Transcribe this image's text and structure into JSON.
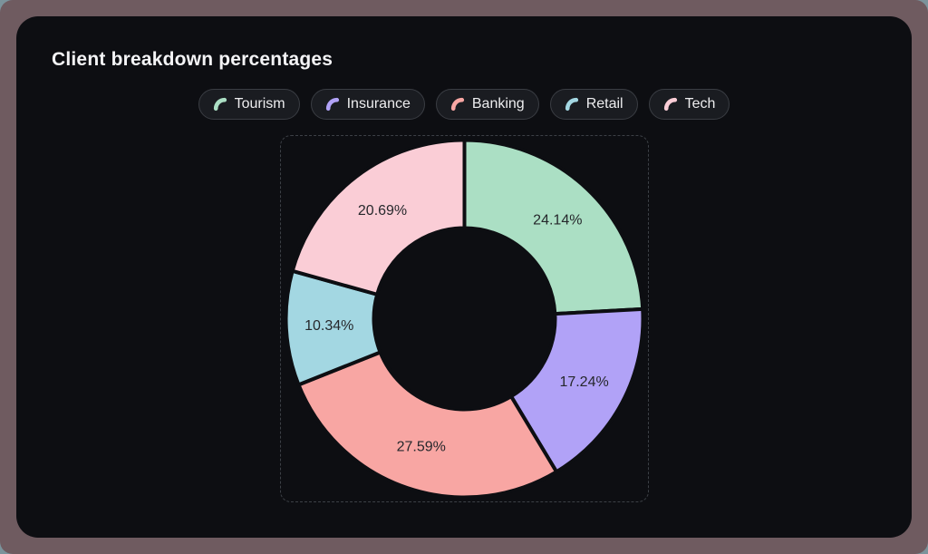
{
  "window": {
    "frame_color": "#6f5b60",
    "card_color": "#0d0e12",
    "corner_backdrop": "#7b939b"
  },
  "title": "Client breakdown percentages",
  "legend": {
    "position": "top",
    "items": [
      {
        "label": "Tourism",
        "color": "#abdfc4"
      },
      {
        "label": "Insurance",
        "color": "#b1a2f7"
      },
      {
        "label": "Banking",
        "color": "#f8a6a3"
      },
      {
        "label": "Retail",
        "color": "#a3d7e2"
      },
      {
        "label": "Tech",
        "color": "#facdd6"
      }
    ]
  },
  "chart_data": {
    "type": "pie",
    "subtype": "donut",
    "title": "Client breakdown percentages",
    "categories": [
      "Tourism",
      "Insurance",
      "Banking",
      "Retail",
      "Tech"
    ],
    "values": [
      24.14,
      17.24,
      27.59,
      10.34,
      20.69
    ],
    "unit": "%",
    "slice_labels": [
      "24.14%",
      "17.24%",
      "27.59%",
      "10.34%",
      "20.69%"
    ],
    "colors": [
      "#abdfc4",
      "#b1a2f7",
      "#f8a6a3",
      "#a3d7e2",
      "#facdd6"
    ],
    "start_angle_deg_from_top": 0,
    "direction": "clockwise",
    "inner_radius_ratio": 0.51,
    "separator_color": "#0d0e12",
    "separator_width": 4,
    "label_color": "#26282c",
    "legend_position": "top",
    "grid": false
  }
}
